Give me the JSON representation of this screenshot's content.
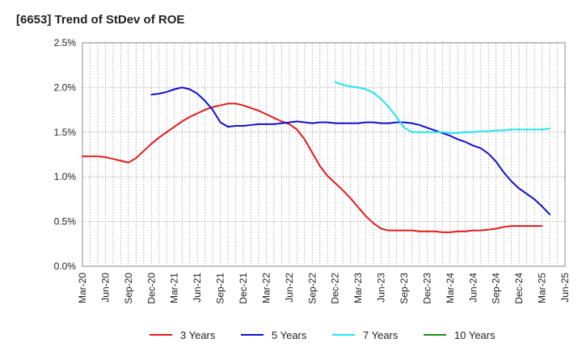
{
  "chart_data": {
    "type": "line",
    "title": "[6653]  Trend of StDev of ROE",
    "xlabel": "",
    "ylabel": "",
    "x_ticks": [
      "Mar-20",
      "Jun-20",
      "Sep-20",
      "Dec-20",
      "Mar-21",
      "Jun-21",
      "Sep-21",
      "Dec-21",
      "Mar-22",
      "Jun-22",
      "Sep-22",
      "Dec-22",
      "Mar-23",
      "Jun-23",
      "Sep-23",
      "Dec-23",
      "Mar-24",
      "Jun-24",
      "Sep-24",
      "Dec-24",
      "Mar-25",
      "Jun-25"
    ],
    "y_ticks": [
      "0.0%",
      "0.5%",
      "1.0%",
      "1.5%",
      "2.0%",
      "2.5%"
    ],
    "ylim": [
      0,
      2.5
    ],
    "grid": true,
    "legend_position": "bottom",
    "series": [
      {
        "name": "3 Years",
        "color": "#e31a1c",
        "points": [
          [
            "Mar-20",
            1.23
          ],
          [
            "Apr-20",
            1.23
          ],
          [
            "May-20",
            1.23
          ],
          [
            "Jun-20",
            1.22
          ],
          [
            "Jul-20",
            1.2
          ],
          [
            "Aug-20",
            1.18
          ],
          [
            "Sep-20",
            1.16
          ],
          [
            "Oct-20",
            1.21
          ],
          [
            "Nov-20",
            1.29
          ],
          [
            "Dec-20",
            1.37
          ],
          [
            "Jan-21",
            1.44
          ],
          [
            "Feb-21",
            1.5
          ],
          [
            "Mar-21",
            1.56
          ],
          [
            "Apr-21",
            1.62
          ],
          [
            "May-21",
            1.67
          ],
          [
            "Jun-21",
            1.71
          ],
          [
            "Jul-21",
            1.75
          ],
          [
            "Aug-21",
            1.78
          ],
          [
            "Sep-21",
            1.8
          ],
          [
            "Oct-21",
            1.82
          ],
          [
            "Nov-21",
            1.82
          ],
          [
            "Dec-21",
            1.8
          ],
          [
            "Jan-22",
            1.77
          ],
          [
            "Feb-22",
            1.74
          ],
          [
            "Mar-22",
            1.7
          ],
          [
            "Apr-22",
            1.66
          ],
          [
            "May-22",
            1.62
          ],
          [
            "Jun-22",
            1.59
          ],
          [
            "Jul-22",
            1.53
          ],
          [
            "Aug-22",
            1.42
          ],
          [
            "Sep-22",
            1.27
          ],
          [
            "Oct-22",
            1.12
          ],
          [
            "Nov-22",
            1.01
          ],
          [
            "Dec-22",
            0.93
          ],
          [
            "Jan-23",
            0.85
          ],
          [
            "Feb-23",
            0.76
          ],
          [
            "Mar-23",
            0.66
          ],
          [
            "Apr-23",
            0.56
          ],
          [
            "May-23",
            0.48
          ],
          [
            "Jun-23",
            0.42
          ],
          [
            "Jul-23",
            0.4
          ],
          [
            "Aug-23",
            0.4
          ],
          [
            "Sep-23",
            0.4
          ],
          [
            "Oct-23",
            0.4
          ],
          [
            "Nov-23",
            0.39
          ],
          [
            "Dec-23",
            0.39
          ],
          [
            "Jan-24",
            0.39
          ],
          [
            "Feb-24",
            0.38
          ],
          [
            "Mar-24",
            0.38
          ],
          [
            "Apr-24",
            0.39
          ],
          [
            "May-24",
            0.39
          ],
          [
            "Jun-24",
            0.4
          ],
          [
            "Jul-24",
            0.4
          ],
          [
            "Aug-24",
            0.41
          ],
          [
            "Sep-24",
            0.42
          ],
          [
            "Oct-24",
            0.44
          ],
          [
            "Nov-24",
            0.45
          ],
          [
            "Dec-24",
            0.45
          ],
          [
            "Jan-25",
            0.45
          ],
          [
            "Feb-25",
            0.45
          ],
          [
            "Mar-25",
            0.45
          ]
        ]
      },
      {
        "name": "5 Years",
        "color": "#1010cc",
        "points": [
          [
            "Dec-20",
            1.92
          ],
          [
            "Jan-21",
            1.93
          ],
          [
            "Feb-21",
            1.95
          ],
          [
            "Mar-21",
            1.98
          ],
          [
            "Apr-21",
            2.0
          ],
          [
            "May-21",
            1.98
          ],
          [
            "Jun-21",
            1.93
          ],
          [
            "Jul-21",
            1.85
          ],
          [
            "Aug-21",
            1.75
          ],
          [
            "Sep-21",
            1.61
          ],
          [
            "Oct-21",
            1.56
          ],
          [
            "Nov-21",
            1.57
          ],
          [
            "Dec-21",
            1.57
          ],
          [
            "Jan-22",
            1.58
          ],
          [
            "Feb-22",
            1.59
          ],
          [
            "Mar-22",
            1.59
          ],
          [
            "Apr-22",
            1.59
          ],
          [
            "May-22",
            1.6
          ],
          [
            "Jun-22",
            1.61
          ],
          [
            "Jul-22",
            1.62
          ],
          [
            "Aug-22",
            1.61
          ],
          [
            "Sep-22",
            1.6
          ],
          [
            "Oct-22",
            1.61
          ],
          [
            "Nov-22",
            1.61
          ],
          [
            "Dec-22",
            1.6
          ],
          [
            "Jan-23",
            1.6
          ],
          [
            "Feb-23",
            1.6
          ],
          [
            "Mar-23",
            1.6
          ],
          [
            "Apr-23",
            1.61
          ],
          [
            "May-23",
            1.61
          ],
          [
            "Jun-23",
            1.6
          ],
          [
            "Jul-23",
            1.6
          ],
          [
            "Aug-23",
            1.61
          ],
          [
            "Sep-23",
            1.61
          ],
          [
            "Oct-23",
            1.6
          ],
          [
            "Nov-23",
            1.58
          ],
          [
            "Dec-23",
            1.55
          ],
          [
            "Jan-24",
            1.52
          ],
          [
            "Feb-24",
            1.49
          ],
          [
            "Mar-24",
            1.46
          ],
          [
            "Apr-24",
            1.42
          ],
          [
            "May-24",
            1.39
          ],
          [
            "Jun-24",
            1.35
          ],
          [
            "Jul-24",
            1.32
          ],
          [
            "Aug-24",
            1.26
          ],
          [
            "Sep-24",
            1.17
          ],
          [
            "Oct-24",
            1.05
          ],
          [
            "Nov-24",
            0.95
          ],
          [
            "Dec-24",
            0.87
          ],
          [
            "Jan-25",
            0.81
          ],
          [
            "Feb-25",
            0.75
          ],
          [
            "Mar-25",
            0.67
          ],
          [
            "Apr-25",
            0.58
          ]
        ]
      },
      {
        "name": "7 Years",
        "color": "#22e5ee",
        "points": [
          [
            "Dec-22",
            2.06
          ],
          [
            "Jan-23",
            2.03
          ],
          [
            "Feb-23",
            2.01
          ],
          [
            "Mar-23",
            2.0
          ],
          [
            "Apr-23",
            1.98
          ],
          [
            "May-23",
            1.94
          ],
          [
            "Jun-23",
            1.87
          ],
          [
            "Jul-23",
            1.78
          ],
          [
            "Aug-23",
            1.67
          ],
          [
            "Sep-23",
            1.55
          ],
          [
            "Oct-23",
            1.5
          ],
          [
            "Nov-23",
            1.5
          ],
          [
            "Dec-23",
            1.5
          ],
          [
            "Jan-24",
            1.5
          ],
          [
            "Feb-24",
            1.5
          ],
          [
            "Mar-24",
            1.49
          ],
          [
            "Apr-24",
            1.49
          ],
          [
            "May-24",
            1.5
          ],
          [
            "Jun-24",
            1.5
          ],
          [
            "Jul-24",
            1.51
          ],
          [
            "Aug-24",
            1.51
          ],
          [
            "Sep-24",
            1.52
          ],
          [
            "Oct-24",
            1.52
          ],
          [
            "Nov-24",
            1.53
          ],
          [
            "Dec-24",
            1.53
          ],
          [
            "Jan-25",
            1.53
          ],
          [
            "Feb-25",
            1.53
          ],
          [
            "Mar-25",
            1.53
          ],
          [
            "Apr-25",
            1.54
          ]
        ]
      },
      {
        "name": "10 Years",
        "color": "#1a8a1a",
        "points": []
      }
    ]
  }
}
